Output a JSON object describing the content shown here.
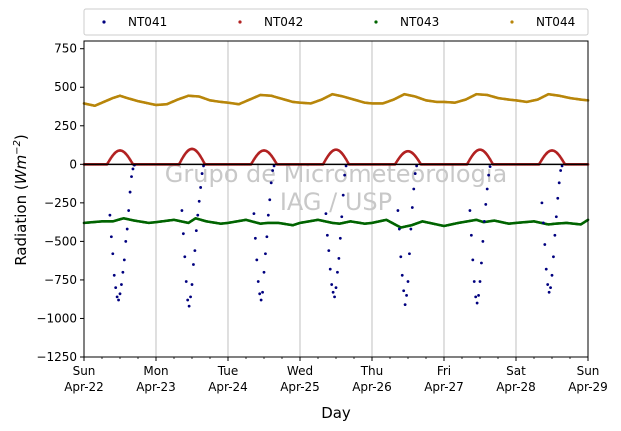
{
  "chart_data": {
    "type": "scatter",
    "title": "",
    "xlabel": "Day",
    "ylabel_text": "Radiation (",
    "ylabel_unit_main": "Wm",
    "ylabel_unit_exp": "−2",
    "ylabel_close": ")",
    "ylim": [
      -1250,
      800
    ],
    "yticks": [
      -1250,
      -1000,
      -750,
      -500,
      -250,
      0,
      250,
      500,
      750
    ],
    "ytick_labels": [
      "−1250",
      "−1000",
      "−750",
      "−500",
      "−250",
      "0",
      "250",
      "500",
      "750"
    ],
    "xlim": [
      "2018-04-22",
      "2018-04-29"
    ],
    "xticks": [
      {
        "line1": "Sun",
        "line2": "Apr-22"
      },
      {
        "line1": "Mon",
        "line2": "Apr-23"
      },
      {
        "line1": "Tue",
        "line2": "Apr-24"
      },
      {
        "line1": "Wed",
        "line2": "Apr-25"
      },
      {
        "line1": "Thu",
        "line2": "Apr-26"
      },
      {
        "line1": "Fri",
        "line2": "Apr-27"
      },
      {
        "line1": "Sat",
        "line2": "Apr-28"
      },
      {
        "line1": "Sun",
        "line2": "Apr-29"
      }
    ],
    "grid": "vertical",
    "legend_placement": "top",
    "zero_line": 0,
    "watermark_line1": "Grupo de Micrometeorologia",
    "watermark_line2": "IAG / USP",
    "series": [
      {
        "name": "NT041",
        "color": "#00007f",
        "points": [
          [
            0.36,
            -330
          ],
          [
            0.38,
            -470
          ],
          [
            0.4,
            -580
          ],
          [
            0.42,
            -720
          ],
          [
            0.44,
            -800
          ],
          [
            0.46,
            -860
          ],
          [
            0.48,
            -880
          ],
          [
            0.5,
            -840
          ],
          [
            0.52,
            -780
          ],
          [
            0.54,
            -700
          ],
          [
            0.56,
            -620
          ],
          [
            0.58,
            -500
          ],
          [
            0.6,
            -420
          ],
          [
            0.62,
            -300
          ],
          [
            0.64,
            -180
          ],
          [
            0.66,
            -80
          ],
          [
            0.68,
            -30
          ],
          [
            0.7,
            -5
          ],
          [
            1.36,
            -300
          ],
          [
            1.38,
            -450
          ],
          [
            1.4,
            -600
          ],
          [
            1.42,
            -760
          ],
          [
            1.44,
            -880
          ],
          [
            1.46,
            -920
          ],
          [
            1.48,
            -860
          ],
          [
            1.5,
            -780
          ],
          [
            1.52,
            -650
          ],
          [
            1.54,
            -560
          ],
          [
            1.56,
            -430
          ],
          [
            1.58,
            -330
          ],
          [
            1.6,
            -240
          ],
          [
            1.62,
            -150
          ],
          [
            1.64,
            -60
          ],
          [
            1.66,
            -10
          ],
          [
            2.36,
            -320
          ],
          [
            2.38,
            -480
          ],
          [
            2.4,
            -620
          ],
          [
            2.42,
            -760
          ],
          [
            2.44,
            -840
          ],
          [
            2.46,
            -880
          ],
          [
            2.48,
            -830
          ],
          [
            2.5,
            -700
          ],
          [
            2.52,
            -580
          ],
          [
            2.54,
            -470
          ],
          [
            2.56,
            -330
          ],
          [
            2.58,
            -230
          ],
          [
            2.6,
            -120
          ],
          [
            2.62,
            -40
          ],
          [
            2.64,
            -10
          ],
          [
            3.36,
            -320
          ],
          [
            3.38,
            -460
          ],
          [
            3.4,
            -560
          ],
          [
            3.42,
            -680
          ],
          [
            3.44,
            -780
          ],
          [
            3.46,
            -830
          ],
          [
            3.48,
            -860
          ],
          [
            3.5,
            -800
          ],
          [
            3.52,
            -700
          ],
          [
            3.54,
            -610
          ],
          [
            3.56,
            -480
          ],
          [
            3.58,
            -340
          ],
          [
            3.6,
            -200
          ],
          [
            3.62,
            -70
          ],
          [
            3.64,
            -10
          ],
          [
            4.36,
            -300
          ],
          [
            4.38,
            -420
          ],
          [
            4.4,
            -600
          ],
          [
            4.42,
            -720
          ],
          [
            4.44,
            -820
          ],
          [
            4.46,
            -910
          ],
          [
            4.48,
            -850
          ],
          [
            4.5,
            -760
          ],
          [
            4.52,
            -580
          ],
          [
            4.54,
            -420
          ],
          [
            4.56,
            -280
          ],
          [
            4.58,
            -160
          ],
          [
            4.6,
            -60
          ],
          [
            4.62,
            -10
          ],
          [
            5.36,
            -300
          ],
          [
            5.38,
            -460
          ],
          [
            5.4,
            -620
          ],
          [
            5.42,
            -760
          ],
          [
            5.44,
            -860
          ],
          [
            5.46,
            -900
          ],
          [
            5.48,
            -850
          ],
          [
            5.5,
            -760
          ],
          [
            5.52,
            -640
          ],
          [
            5.54,
            -500
          ],
          [
            5.56,
            -370
          ],
          [
            5.58,
            -260
          ],
          [
            5.6,
            -160
          ],
          [
            5.62,
            -70
          ],
          [
            5.64,
            -15
          ],
          [
            6.36,
            -250
          ],
          [
            6.38,
            -380
          ],
          [
            6.4,
            -520
          ],
          [
            6.42,
            -680
          ],
          [
            6.44,
            -780
          ],
          [
            6.46,
            -830
          ],
          [
            6.48,
            -800
          ],
          [
            6.5,
            -720
          ],
          [
            6.52,
            -600
          ],
          [
            6.54,
            -460
          ],
          [
            6.56,
            -340
          ],
          [
            6.58,
            -220
          ],
          [
            6.6,
            -120
          ],
          [
            6.62,
            -40
          ],
          [
            6.64,
            -10
          ]
        ]
      },
      {
        "name": "NT042",
        "color": "#b22222",
        "day_peaks": [
          {
            "start": 0.32,
            "end": 0.68,
            "peak": 90
          },
          {
            "start": 1.32,
            "end": 1.68,
            "peak": 100
          },
          {
            "start": 2.32,
            "end": 2.68,
            "peak": 90
          },
          {
            "start": 3.32,
            "end": 3.68,
            "peak": 95
          },
          {
            "start": 4.32,
            "end": 4.68,
            "peak": 85
          },
          {
            "start": 5.32,
            "end": 5.68,
            "peak": 95
          },
          {
            "start": 6.32,
            "end": 6.68,
            "peak": 90
          }
        ],
        "night_value": 0
      },
      {
        "name": "NT043",
        "color": "#006400",
        "points": [
          [
            0.0,
            -380
          ],
          [
            0.25,
            -370
          ],
          [
            0.4,
            -370
          ],
          [
            0.55,
            -350
          ],
          [
            0.7,
            -365
          ],
          [
            0.9,
            -380
          ],
          [
            1.0,
            -375
          ],
          [
            1.25,
            -360
          ],
          [
            1.45,
            -380
          ],
          [
            1.55,
            -350
          ],
          [
            1.7,
            -370
          ],
          [
            1.9,
            -385
          ],
          [
            2.0,
            -380
          ],
          [
            2.25,
            -360
          ],
          [
            2.45,
            -385
          ],
          [
            2.55,
            -380
          ],
          [
            2.7,
            -380
          ],
          [
            2.9,
            -395
          ],
          [
            3.0,
            -380
          ],
          [
            3.25,
            -360
          ],
          [
            3.45,
            -380
          ],
          [
            3.55,
            -385
          ],
          [
            3.7,
            -370
          ],
          [
            3.9,
            -385
          ],
          [
            4.0,
            -380
          ],
          [
            4.2,
            -360
          ],
          [
            4.4,
            -410
          ],
          [
            4.55,
            -395
          ],
          [
            4.7,
            -370
          ],
          [
            4.9,
            -390
          ],
          [
            5.0,
            -400
          ],
          [
            5.2,
            -380
          ],
          [
            5.45,
            -360
          ],
          [
            5.55,
            -375
          ],
          [
            5.7,
            -365
          ],
          [
            5.9,
            -385
          ],
          [
            6.0,
            -380
          ],
          [
            6.25,
            -370
          ],
          [
            6.45,
            -390
          ],
          [
            6.55,
            -385
          ],
          [
            6.7,
            -380
          ],
          [
            6.9,
            -390
          ],
          [
            7.0,
            -360
          ]
        ]
      },
      {
        "name": "NT044",
        "color": "#b8860b",
        "points": [
          [
            0.0,
            395
          ],
          [
            0.15,
            380
          ],
          [
            0.3,
            410
          ],
          [
            0.4,
            430
          ],
          [
            0.5,
            445
          ],
          [
            0.6,
            430
          ],
          [
            0.75,
            410
          ],
          [
            0.9,
            395
          ],
          [
            1.0,
            385
          ],
          [
            1.15,
            390
          ],
          [
            1.3,
            420
          ],
          [
            1.45,
            445
          ],
          [
            1.6,
            440
          ],
          [
            1.75,
            415
          ],
          [
            1.9,
            405
          ],
          [
            2.0,
            400
          ],
          [
            2.15,
            390
          ],
          [
            2.3,
            420
          ],
          [
            2.45,
            450
          ],
          [
            2.6,
            445
          ],
          [
            2.75,
            425
          ],
          [
            2.9,
            405
          ],
          [
            3.0,
            400
          ],
          [
            3.15,
            395
          ],
          [
            3.3,
            420
          ],
          [
            3.45,
            455
          ],
          [
            3.6,
            440
          ],
          [
            3.75,
            420
          ],
          [
            3.9,
            400
          ],
          [
            4.0,
            395
          ],
          [
            4.15,
            395
          ],
          [
            4.3,
            420
          ],
          [
            4.45,
            455
          ],
          [
            4.6,
            440
          ],
          [
            4.75,
            415
          ],
          [
            4.9,
            405
          ],
          [
            5.0,
            405
          ],
          [
            5.15,
            400
          ],
          [
            5.3,
            420
          ],
          [
            5.45,
            455
          ],
          [
            5.6,
            450
          ],
          [
            5.75,
            430
          ],
          [
            5.9,
            420
          ],
          [
            6.0,
            415
          ],
          [
            6.15,
            405
          ],
          [
            6.3,
            420
          ],
          [
            6.45,
            455
          ],
          [
            6.6,
            445
          ],
          [
            6.75,
            430
          ],
          [
            6.9,
            420
          ],
          [
            7.0,
            415
          ]
        ]
      }
    ]
  }
}
